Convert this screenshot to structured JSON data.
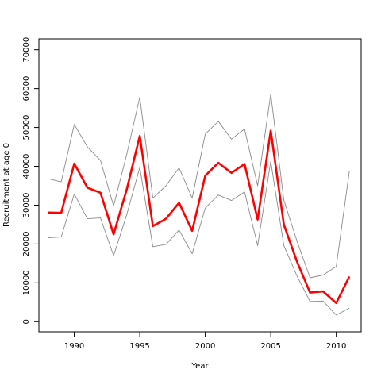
{
  "chart_data": {
    "type": "line",
    "title": "",
    "xlabel": "Year",
    "ylabel": "Recruitment at age 0",
    "xlim": [
      1987.3,
      2011.9
    ],
    "ylim": [
      -2600,
      72800
    ],
    "x_ticks": [
      1990,
      1995,
      2000,
      2005,
      2010
    ],
    "y_ticks": [
      0,
      10000,
      20000,
      30000,
      40000,
      50000,
      60000,
      70000
    ],
    "grid": false,
    "legend": "none",
    "x": [
      1988,
      1989,
      1990,
      1991,
      1992,
      1993,
      1994,
      1995,
      1996,
      1997,
      1998,
      1999,
      2000,
      2001,
      2002,
      2003,
      2004,
      2005,
      2006,
      2007,
      2008,
      2009,
      2010,
      2011
    ],
    "series": [
      {
        "role": "upper",
        "color": "#8a8a8a",
        "values": [
          36800,
          36000,
          50800,
          45000,
          41500,
          29800,
          43000,
          57800,
          31800,
          35000,
          39600,
          31800,
          48300,
          51600,
          47000,
          49600,
          35000,
          58600,
          31300,
          20800,
          11300,
          12000,
          14200,
          38700
        ]
      },
      {
        "role": "estimate",
        "color": "#ff0000",
        "values": [
          28100,
          28000,
          40700,
          34500,
          33200,
          22500,
          34000,
          47800,
          24600,
          26500,
          30600,
          23400,
          37600,
          40900,
          38300,
          40600,
          26300,
          49200,
          25000,
          15500,
          7500,
          7800,
          4800,
          11600
        ]
      },
      {
        "role": "lower",
        "color": "#8a8a8a",
        "values": [
          21600,
          21800,
          32900,
          26500,
          26700,
          17000,
          27500,
          39700,
          19300,
          19900,
          23600,
          17500,
          29300,
          32600,
          31200,
          33400,
          19600,
          41300,
          19600,
          11800,
          5200,
          5300,
          1700,
          3500
        ]
      }
    ]
  }
}
